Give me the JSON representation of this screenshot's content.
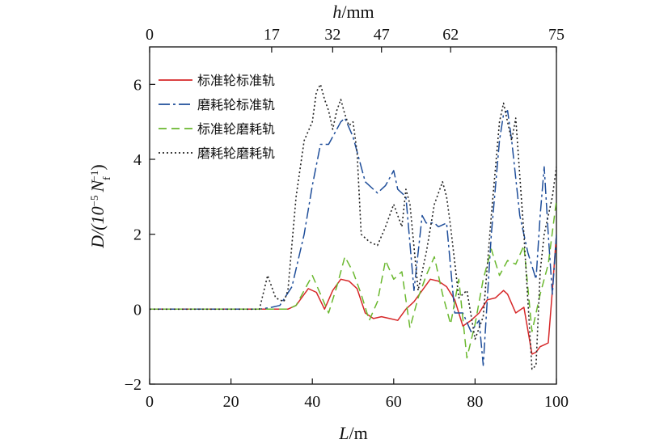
{
  "chart_data": {
    "type": "line",
    "xlabel_italic": "L",
    "xlabel_rest": "/m",
    "top_xlabel_italic": "h",
    "top_xlabel_rest": "/mm",
    "ylabel_prefix": "D/(10",
    "ylabel_exp": "−5",
    "ylabel_n": "N",
    "ylabel_sub": "f",
    "ylabel_sup": "−1",
    "ylabel_suffix": ")",
    "xlim": [
      0,
      100
    ],
    "ylim": [
      -2,
      7
    ],
    "x_ticks": [
      0,
      20,
      40,
      60,
      80,
      100
    ],
    "y_ticks": [
      -2,
      0,
      2,
      4,
      6
    ],
    "y_tick_labels": [
      "−2",
      "0",
      "2",
      "4",
      "6"
    ],
    "top_ticks": [
      {
        "x": 0,
        "label": "0"
      },
      {
        "x": 30,
        "label": "17"
      },
      {
        "x": 45,
        "label": "32"
      },
      {
        "x": 57,
        "label": "47"
      },
      {
        "x": 74,
        "label": "62"
      },
      {
        "x": 101,
        "label": "75"
      }
    ],
    "legend_position": "top-left",
    "series": [
      {
        "name": "标准轮标准轨",
        "color": "#d62728",
        "dash": "solid",
        "x": [
          0,
          25,
          34,
          36,
          39,
          41,
          43,
          45,
          47,
          49,
          51,
          53,
          55,
          57,
          59,
          61,
          63,
          65,
          67,
          69,
          71,
          73,
          75,
          77,
          79,
          81,
          83,
          85,
          87,
          88,
          90,
          92,
          94,
          95,
          96,
          97,
          98,
          99,
          100
        ],
        "y": [
          0,
          0,
          0,
          0.1,
          0.55,
          0.45,
          0,
          0.5,
          0.8,
          0.75,
          0.55,
          -0.1,
          -0.25,
          -0.2,
          -0.25,
          -0.3,
          0,
          0.2,
          0.5,
          0.8,
          0.75,
          0.6,
          0.25,
          -0.45,
          -0.3,
          -0.1,
          0.25,
          0.3,
          0.5,
          0.4,
          -0.1,
          0.05,
          -1.2,
          -1.15,
          -1.0,
          -0.95,
          -0.9,
          0.5,
          2.0
        ]
      },
      {
        "name": "磨耗轮标准轨",
        "color": "#1f4e9a",
        "dash": "dashdot",
        "x": [
          0,
          27,
          30,
          32,
          35,
          38,
          40,
          42,
          44,
          47,
          48,
          50,
          53,
          56,
          58,
          60,
          61,
          63,
          65,
          67,
          68,
          70,
          71,
          73,
          75,
          77,
          79,
          81,
          82,
          84,
          86,
          87,
          88,
          89,
          91,
          93,
          95,
          96,
          97,
          98,
          99,
          100
        ],
        "y": [
          0,
          0,
          0.05,
          0.1,
          0.6,
          2.0,
          3.3,
          4.4,
          4.4,
          5.0,
          5.1,
          4.6,
          3.4,
          3.1,
          3.3,
          3.7,
          3.2,
          3.0,
          0.5,
          2.5,
          2.3,
          2.3,
          2.2,
          2.3,
          -0.1,
          -0.1,
          -0.6,
          -0.3,
          -1.5,
          2.0,
          4.5,
          5.2,
          5.3,
          4.5,
          2.5,
          1.5,
          0.8,
          2.5,
          3.8,
          2.0,
          0.4,
          2.0
        ]
      },
      {
        "name": "标准轮磨耗轨",
        "color": "#6ab82e",
        "dash": "dash",
        "x": [
          0,
          34,
          36,
          38,
          40,
          42,
          44,
          46,
          48,
          50,
          52,
          54,
          56,
          58,
          60,
          62,
          64,
          66,
          68,
          70,
          72,
          74,
          76,
          78,
          80,
          82,
          84,
          86,
          88,
          90,
          92,
          94,
          96,
          98,
          100
        ],
        "y": [
          0,
          0,
          0.1,
          0.5,
          0.9,
          0.4,
          -0.1,
          0.6,
          1.4,
          1.0,
          0.4,
          -0.3,
          0.2,
          1.3,
          0.8,
          1.0,
          -0.5,
          0.3,
          0.9,
          1.4,
          0.4,
          -0.4,
          0.8,
          -1.3,
          -0.4,
          0.8,
          1.6,
          0.9,
          1.3,
          1.2,
          1.7,
          -0.6,
          0.4,
          1.2,
          2.9
        ]
      },
      {
        "name": "磨耗轮磨耗轨",
        "color": "#222222",
        "dash": "dot",
        "x": [
          0,
          27,
          29,
          30,
          31,
          33,
          34,
          36,
          38,
          40,
          41,
          42,
          43,
          44,
          45,
          46,
          47,
          48,
          49,
          50,
          51,
          52,
          54,
          56,
          58,
          60,
          61,
          62,
          63,
          64,
          66,
          68,
          70,
          72,
          73,
          74,
          76,
          78,
          80,
          82,
          84,
          86,
          87,
          88,
          89,
          90,
          92,
          94,
          95,
          96,
          97,
          98,
          99,
          100
        ],
        "y": [
          0,
          0,
          0.9,
          0.6,
          0.3,
          0.2,
          0.5,
          3.0,
          4.5,
          5.0,
          5.8,
          6.0,
          5.6,
          5.3,
          4.8,
          5.3,
          5.6,
          5.2,
          4.9,
          5.0,
          4.2,
          2.0,
          1.8,
          1.7,
          2.2,
          2.8,
          2.5,
          2.2,
          3.2,
          2.8,
          0.5,
          1.5,
          2.8,
          3.4,
          3.0,
          2.2,
          0.3,
          0.5,
          -0.8,
          -0.2,
          2.5,
          5.0,
          5.5,
          5.0,
          4.5,
          5.1,
          2.0,
          -1.6,
          -1.5,
          1.0,
          2.0,
          2.5,
          3.0,
          3.8
        ]
      }
    ]
  }
}
